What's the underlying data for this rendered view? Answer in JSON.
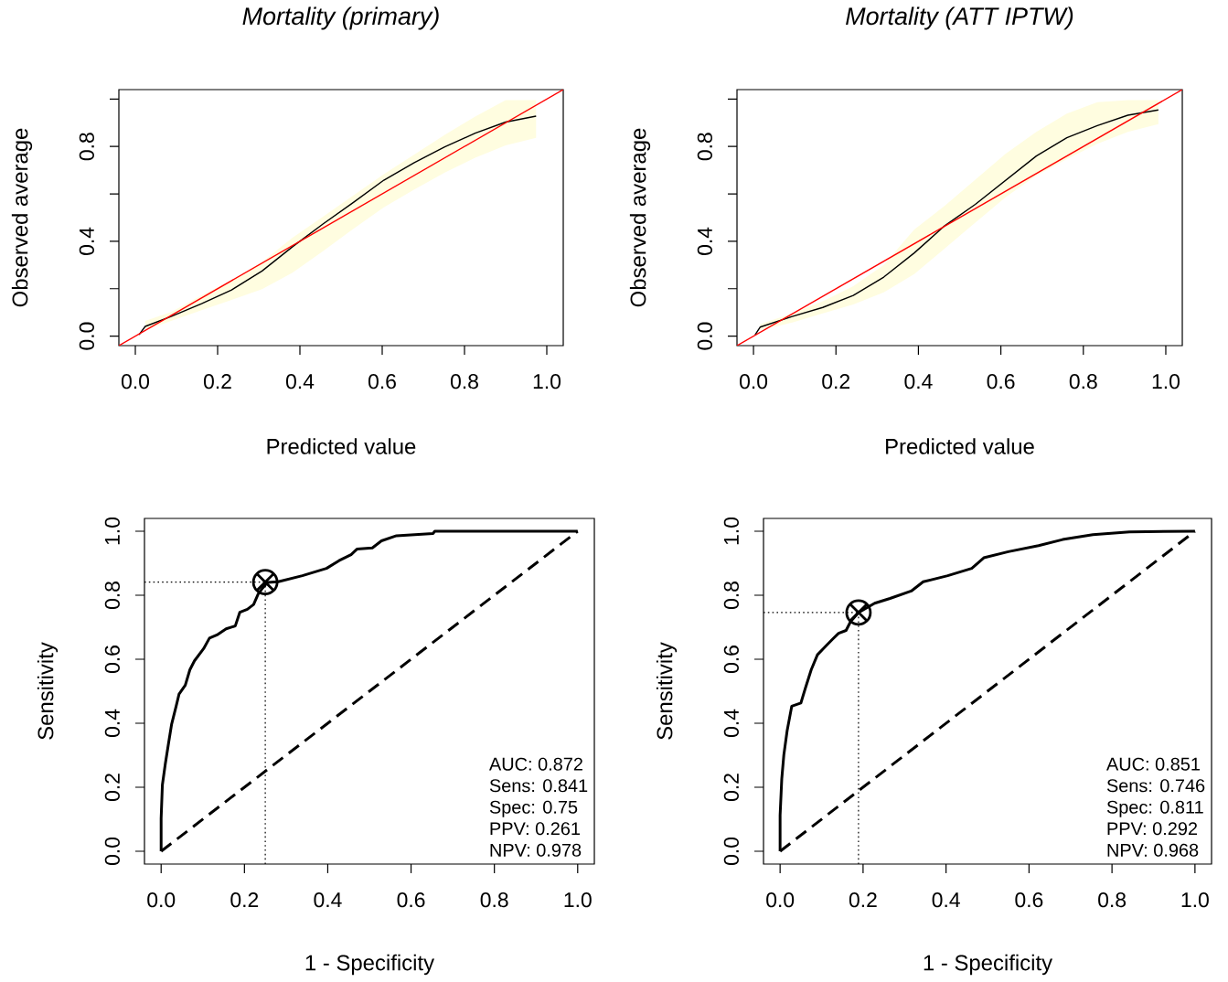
{
  "chart_data": [
    {
      "type": "line",
      "title": "Mortality (primary)",
      "xlabel": "Predicted value",
      "ylabel": "Observed average",
      "xlim": [
        -0.04,
        1.04
      ],
      "ylim": [
        -0.04,
        1.04
      ],
      "xticks": [
        {
          "value": 0,
          "label": "0.0"
        },
        {
          "value": 0.2,
          "label": "0.2"
        },
        {
          "value": 0.4,
          "label": "0.4"
        },
        {
          "value": 0.6,
          "label": "0.6"
        },
        {
          "value": 0.8,
          "label": "0.8"
        },
        {
          "value": 1.0,
          "label": "1.0"
        }
      ],
      "yticks": [
        {
          "value": 0,
          "label": "0.0"
        },
        {
          "value": 0.2,
          "label": null
        },
        {
          "value": 0.4,
          "label": "0.4"
        },
        {
          "value": 0.6,
          "label": null
        },
        {
          "value": 0.8,
          "label": "0.8"
        },
        {
          "value": 1.0,
          "label": null
        }
      ],
      "series": [
        {
          "color": "#000000",
          "x": [
            0.009,
            0.024,
            0.087,
            0.161,
            0.234,
            0.308,
            0.382,
            0.456,
            0.53,
            0.604,
            0.678,
            0.752,
            0.826,
            0.9,
            0.974
          ],
          "values": [
            0.006,
            0.041,
            0.083,
            0.137,
            0.195,
            0.275,
            0.377,
            0.473,
            0.564,
            0.658,
            0.732,
            0.798,
            0.856,
            0.903,
            0.928
          ],
          "lower": [
            null,
            0.026,
            0.064,
            0.109,
            0.153,
            0.198,
            0.268,
            0.358,
            0.453,
            0.543,
            0.619,
            0.69,
            0.753,
            0.805,
            0.837
          ],
          "upper": [
            null,
            0.064,
            0.102,
            0.172,
            0.236,
            0.313,
            0.415,
            0.504,
            0.594,
            0.683,
            0.766,
            0.849,
            0.926,
            0.996,
            0.996
          ]
        },
        {
          "color": "#ff0000",
          "x": [
            -0.04,
            1.04
          ],
          "values": [
            -0.04,
            1.04
          ]
        }
      ]
    },
    {
      "type": "line",
      "title": "Mortality (ATT IPTW)",
      "xlabel": "Predicted value",
      "ylabel": "Observed average",
      "xlim": [
        -0.04,
        1.04
      ],
      "ylim": [
        -0.04,
        1.04
      ],
      "xticks": [
        {
          "value": 0,
          "label": "0.0"
        },
        {
          "value": 0.2,
          "label": "0.2"
        },
        {
          "value": 0.4,
          "label": "0.4"
        },
        {
          "value": 0.6,
          "label": "0.6"
        },
        {
          "value": 0.8,
          "label": "0.8"
        },
        {
          "value": 1.0,
          "label": "1.0"
        }
      ],
      "yticks": [
        {
          "value": 0,
          "label": "0.0"
        },
        {
          "value": 0.2,
          "label": null
        },
        {
          "value": 0.4,
          "label": "0.4"
        },
        {
          "value": 0.6,
          "label": null
        },
        {
          "value": 0.8,
          "label": "0.8"
        },
        {
          "value": 1.0,
          "label": null
        }
      ],
      "series": [
        {
          "color": "#000000",
          "x": [
            0.004,
            0.016,
            0.094,
            0.168,
            0.242,
            0.316,
            0.39,
            0.464,
            0.538,
            0.612,
            0.686,
            0.76,
            0.834,
            0.908,
            0.982
          ],
          "values": [
            0.006,
            0.038,
            0.083,
            0.121,
            0.172,
            0.249,
            0.351,
            0.466,
            0.556,
            0.658,
            0.76,
            0.837,
            0.888,
            0.932,
            0.954
          ],
          "lower": [
            null,
            0.026,
            0.057,
            0.096,
            0.134,
            0.185,
            0.262,
            0.37,
            0.479,
            0.587,
            0.677,
            0.747,
            0.811,
            0.862,
            0.894
          ],
          "upper": [
            null,
            0.051,
            0.096,
            0.147,
            0.211,
            0.3,
            0.45,
            0.55,
            0.66,
            0.77,
            0.862,
            0.939,
            0.987,
            0.996,
            0.996
          ]
        },
        {
          "color": "#ff0000",
          "x": [
            -0.04,
            1.04
          ],
          "values": [
            -0.04,
            1.04
          ]
        }
      ]
    },
    {
      "type": "line",
      "xlabel": "1 - Specificity",
      "ylabel": "Sensitivity",
      "xlim": [
        -0.04,
        1.04
      ],
      "ylim": [
        -0.04,
        1.04
      ],
      "xticks": [
        {
          "value": 0,
          "label": "0.0"
        },
        {
          "value": 0.2,
          "label": "0.2"
        },
        {
          "value": 0.4,
          "label": "0.4"
        },
        {
          "value": 0.6,
          "label": "0.6"
        },
        {
          "value": 0.8,
          "label": "0.8"
        },
        {
          "value": 1.0,
          "label": "1.0"
        }
      ],
      "yticks": [
        {
          "value": 0,
          "label": "0.0"
        },
        {
          "value": 0.2,
          "label": "0.2"
        },
        {
          "value": 0.4,
          "label": "0.4"
        },
        {
          "value": 0.6,
          "label": "0.6"
        },
        {
          "value": 0.8,
          "label": "0.8"
        },
        {
          "value": 1.0,
          "label": "1.0"
        }
      ],
      "annotations": [
        "AUC:  0.872",
        "Sens:  0.841",
        "Spec:  0.75",
        "PPV:  0.261",
        "NPV:  0.978"
      ],
      "series": [
        {
          "color": "#000000",
          "x": [
            0,
            0,
            0.003,
            0.01,
            0.018,
            0.025,
            0.036,
            0.043,
            0.058,
            0.069,
            0.08,
            0.102,
            0.116,
            0.134,
            0.156,
            0.178,
            0.189,
            0.207,
            0.222,
            0.233,
            0.244,
            0.255,
            0.281,
            0.339,
            0.397,
            0.427,
            0.456,
            0.47,
            0.507,
            0.529,
            0.565,
            0.653,
            0.657,
            1.0
          ],
          "values": [
            0,
            0.102,
            0.207,
            0.273,
            0.339,
            0.396,
            0.453,
            0.491,
            0.519,
            0.567,
            0.595,
            0.633,
            0.666,
            0.676,
            0.695,
            0.704,
            0.747,
            0.756,
            0.771,
            0.804,
            0.823,
            0.84,
            0.842,
            0.861,
            0.884,
            0.908,
            0.927,
            0.944,
            0.948,
            0.97,
            0.986,
            0.993,
            1.0,
            1.0
          ]
        },
        {
          "color": "#000000",
          "line_style": "dashed",
          "x": [
            0,
            1
          ],
          "values": [
            0,
            1
          ]
        },
        {
          "color": "#000000",
          "line_style": "dotted",
          "x": [
            -0.04,
            0.25
          ],
          "values": [
            0.841,
            0.841
          ]
        },
        {
          "color": "#000000",
          "line_style": "dotted",
          "x": [
            0.25,
            0.25
          ],
          "values": [
            -0.04,
            0.841
          ]
        },
        {
          "type": "scatter",
          "marker": "cross",
          "color": "#000000",
          "x": [
            0.25
          ],
          "values": [
            0.841
          ]
        }
      ]
    },
    {
      "type": "line",
      "xlabel": "1 - Specificity",
      "ylabel": "Sensitivity",
      "xlim": [
        -0.04,
        1.04
      ],
      "ylim": [
        -0.04,
        1.04
      ],
      "xticks": [
        {
          "value": 0,
          "label": "0.0"
        },
        {
          "value": 0.2,
          "label": "0.2"
        },
        {
          "value": 0.4,
          "label": "0.4"
        },
        {
          "value": 0.6,
          "label": "0.6"
        },
        {
          "value": 0.8,
          "label": "0.8"
        },
        {
          "value": 1.0,
          "label": "1.0"
        }
      ],
      "yticks": [
        {
          "value": 0,
          "label": "0.0"
        },
        {
          "value": 0.2,
          "label": "0.2"
        },
        {
          "value": 0.4,
          "label": "0.4"
        },
        {
          "value": 0.6,
          "label": "0.6"
        },
        {
          "value": 0.8,
          "label": "0.8"
        },
        {
          "value": 1.0,
          "label": "1.0"
        }
      ],
      "annotations": [
        "AUC:  0.851",
        "Sens:  0.746",
        "Spec:  0.811",
        "PPV:  0.292",
        "NPV:  0.968"
      ],
      "series": [
        {
          "color": "#000000",
          "x": [
            0,
            0,
            0.004,
            0.009,
            0.017,
            0.028,
            0.05,
            0.061,
            0.075,
            0.09,
            0.104,
            0.126,
            0.141,
            0.159,
            0.17,
            0.189,
            0.228,
            0.265,
            0.316,
            0.345,
            0.404,
            0.462,
            0.491,
            0.55,
            0.623,
            0.681,
            0.754,
            0.842,
            1.0
          ],
          "values": [
            0,
            0.112,
            0.226,
            0.301,
            0.377,
            0.453,
            0.463,
            0.51,
            0.567,
            0.614,
            0.633,
            0.662,
            0.681,
            0.69,
            0.718,
            0.746,
            0.775,
            0.79,
            0.813,
            0.842,
            0.861,
            0.884,
            0.917,
            0.936,
            0.955,
            0.974,
            0.989,
            0.998,
            1.0
          ]
        },
        {
          "color": "#000000",
          "line_style": "dashed",
          "x": [
            0,
            1
          ],
          "values": [
            0,
            1
          ]
        },
        {
          "color": "#000000",
          "line_style": "dotted",
          "x": [
            -0.04,
            0.189
          ],
          "values": [
            0.746,
            0.746
          ]
        },
        {
          "color": "#000000",
          "line_style": "dotted",
          "x": [
            0.189,
            0.189
          ],
          "values": [
            -0.04,
            0.746
          ]
        },
        {
          "type": "scatter",
          "marker": "cross",
          "color": "#000000",
          "x": [
            0.189
          ],
          "values": [
            0.746
          ]
        }
      ]
    }
  ]
}
